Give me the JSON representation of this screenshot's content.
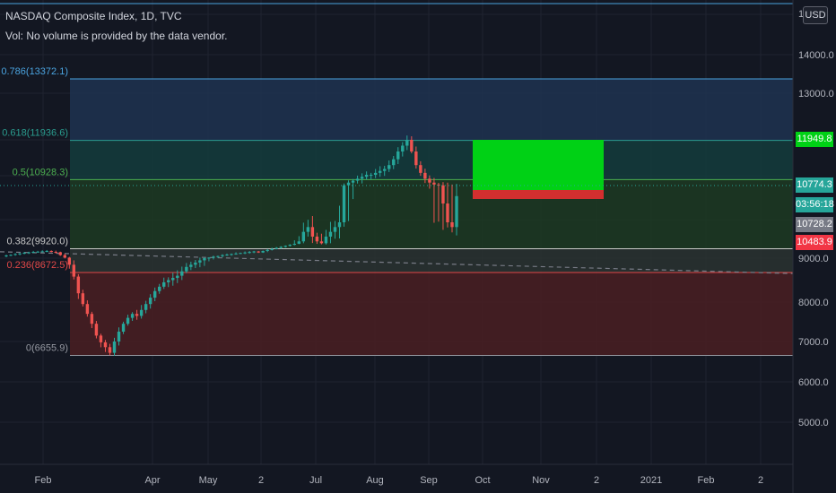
{
  "header": {
    "title": "NASDAQ Composite Index, 1D, TVC",
    "subtitle": "Vol: No volume is provided by the data vendor."
  },
  "axis": {
    "currency": "USD",
    "top_cut_label": "1",
    "y_ticks": [
      {
        "v": 14000,
        "label": "14000.0"
      },
      {
        "v": 13000,
        "label": "13000.0"
      },
      {
        "v": 9000,
        "label": "9000.0"
      },
      {
        "v": 8000,
        "label": "8000.0"
      },
      {
        "v": 7000,
        "label": "7000.0"
      },
      {
        "v": 6000,
        "label": "6000.0"
      },
      {
        "v": 5000,
        "label": "5000.0"
      }
    ],
    "x_ticks": [
      "Feb",
      "Apr",
      "May",
      "2",
      "Jul",
      "Aug",
      "Sep",
      "Oct",
      "Nov",
      "2",
      "2021",
      "Feb",
      "2"
    ]
  },
  "price_tags": [
    {
      "name": "target-tag",
      "label": "11949.8",
      "v": 11949.8,
      "color": "#00d115"
    },
    {
      "name": "last-price-tag",
      "label": "10774.3",
      "v": 10774.3,
      "color": "#26a69a"
    },
    {
      "name": "countdown-tag",
      "label": "03:56:18",
      "v": 10774.3,
      "color": "#26a69a"
    },
    {
      "name": "entry-tag",
      "label": "10728.2",
      "v": 10728.2,
      "color": "#787b86"
    },
    {
      "name": "stop-tag",
      "label": "10483.9",
      "v": 10483.9,
      "color": "#f23645"
    }
  ],
  "fib_levels": [
    {
      "ratio": "0.786",
      "price": 13372.1,
      "label": "0.786(13372.1)",
      "color": "#4aa3df"
    },
    {
      "ratio": "0.618",
      "price": 11936.6,
      "label": "0.618(11936.6)",
      "color": "#2a9d8f"
    },
    {
      "ratio": "0.5",
      "price": 10928.3,
      "label": "0.5(10928.3)",
      "color": "#4caf50"
    },
    {
      "ratio": "0.382",
      "price": 9920.0,
      "label": "0.382(9920.0)",
      "color": "#c8c8c8"
    },
    {
      "ratio": "0.236",
      "price": 8672.5,
      "label": "0.236(8672.5)",
      "color": "#e04848"
    },
    {
      "ratio": "0",
      "price": 6655.9,
      "label": "0(6655.9)",
      "color": "#9598a1"
    }
  ],
  "chart_data": {
    "type": "candlestick",
    "title": "NASDAQ Composite Index, 1D, TVC",
    "ylim": [
      4600,
      15100
    ],
    "position_tool": {
      "entry": 10728.2,
      "target": 11949.8,
      "stop": 10483.9
    },
    "trendline": {
      "from": 9620,
      "to": 8650
    },
    "path": [
      9180,
      9260,
      9320,
      9400,
      9460,
      9520,
      9560,
      9610,
      9630,
      9660,
      9700,
      9610,
      9580,
      9300,
      9050,
      8850,
      8580,
      8200,
      7950,
      7700,
      7450,
      7150,
      6980,
      6860,
      6720,
      7000,
      7250,
      7450,
      7600,
      7700,
      7650,
      7800,
      7950,
      8100,
      8250,
      8350,
      8450,
      8500,
      8550,
      8600,
      8700,
      8800,
      8850,
      8900,
      8950,
      9000,
      9050,
      9150,
      9200,
      9300,
      9350,
      9400,
      9450,
      9500,
      9550,
      9600,
      9650,
      9550,
      9700,
      9800,
      9900,
      10000,
      10100,
      10200,
      10300,
      10400,
      10500,
      10600,
      10650,
      10550,
      10500,
      10450,
      10550,
      10600,
      10650,
      10700,
      10780,
      10850,
      10900,
      10950,
      11000,
      11050,
      11050,
      11100,
      11150,
      11200,
      11300,
      11450,
      11650,
      11800,
      11950,
      11650,
      11300,
      11100,
      10950,
      10850,
      10800,
      10780,
      10750,
      10700,
      10650,
      10760
    ]
  }
}
